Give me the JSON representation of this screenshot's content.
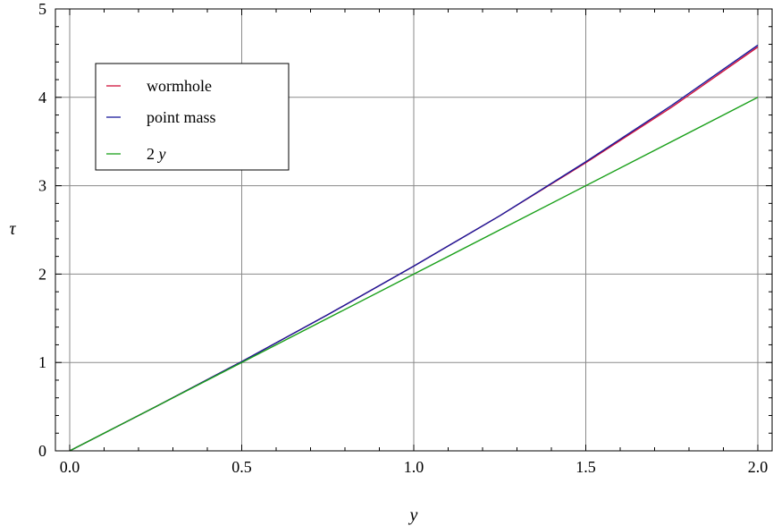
{
  "chart_data": {
    "type": "line",
    "xlabel": "y",
    "ylabel": "τ",
    "xlim": [
      0.0,
      2.0
    ],
    "ylim": [
      0,
      5
    ],
    "x_ticks": [
      "0.0",
      "0.5",
      "1.0",
      "1.5",
      "2.0"
    ],
    "y_ticks": [
      "0",
      "1",
      "2",
      "3",
      "4",
      "5"
    ],
    "grid": true,
    "legend_position": "top-left",
    "series": [
      {
        "name": "wormhole",
        "color": "#d0103a",
        "x": [
          0.0,
          0.25,
          0.5,
          0.75,
          1.0,
          1.25,
          1.5,
          1.75,
          2.0
        ],
        "y": [
          0.0,
          0.5,
          1.01,
          1.54,
          2.09,
          2.66,
          3.26,
          3.89,
          4.57
        ]
      },
      {
        "name": "point mass",
        "color": "#1a1a9c",
        "x": [
          0.0,
          0.25,
          0.5,
          0.75,
          1.0,
          1.25,
          1.5,
          1.75,
          2.0
        ],
        "y": [
          0.0,
          0.5,
          1.01,
          1.54,
          2.09,
          2.66,
          3.27,
          3.91,
          4.59
        ]
      },
      {
        "name_prefix": "2 ",
        "name_var": "y",
        "color": "#1aa01a",
        "x": [
          0.0,
          2.0
        ],
        "y": [
          0.0,
          4.0
        ]
      }
    ]
  }
}
